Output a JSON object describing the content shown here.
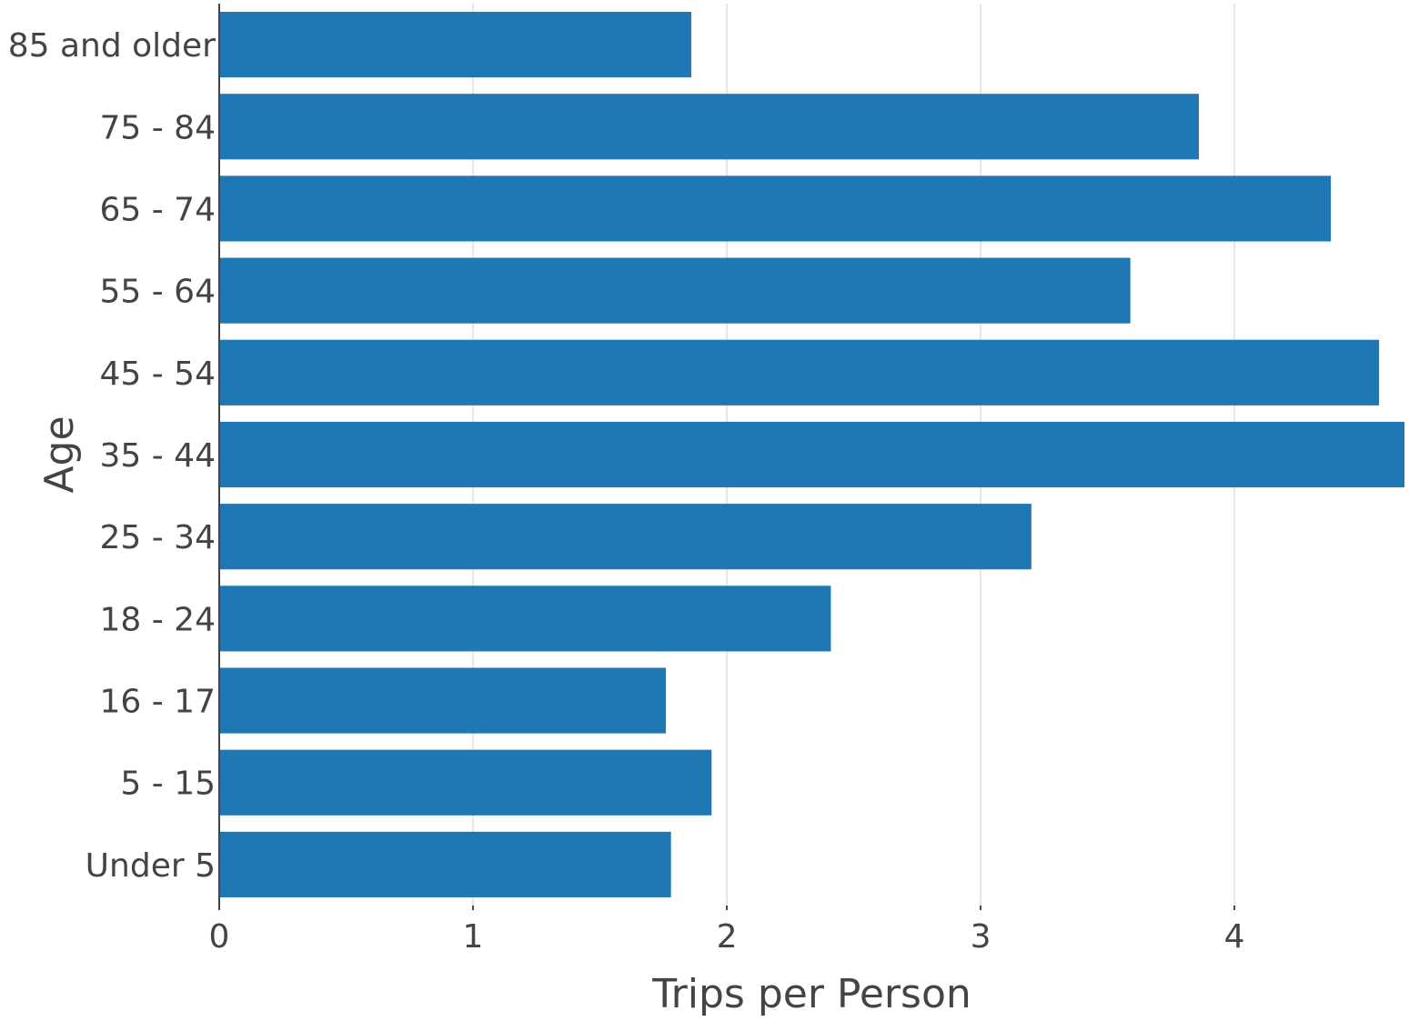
{
  "chart_data": {
    "type": "bar",
    "orientation": "horizontal",
    "categories": [
      "Under 5",
      "5 - 15",
      "16 - 17",
      "18 - 24",
      "25 - 34",
      "35 - 44",
      "45 - 54",
      "55 - 64",
      "65 - 74",
      "75 - 84",
      "85 and older"
    ],
    "values": [
      1.78,
      1.94,
      1.76,
      2.41,
      3.2,
      4.67,
      4.57,
      3.59,
      4.38,
      3.86,
      1.86
    ],
    "title": "",
    "xlabel": "Trips per Person",
    "ylabel": "Age",
    "xlim": [
      0,
      4.67
    ],
    "xticks": [
      "0",
      "1",
      "2",
      "3",
      "4"
    ],
    "xtick_values": [
      0,
      1,
      2,
      3,
      4
    ],
    "grid": "vertical",
    "legend": "none",
    "bar_color": "#1f77b4",
    "grid_color": "#e6e6e6",
    "axis_color": "#444444"
  }
}
